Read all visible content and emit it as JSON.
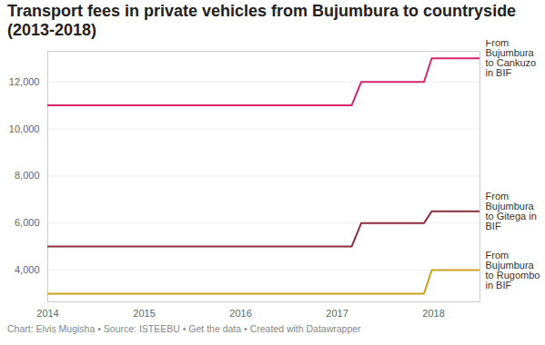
{
  "chart_data": {
    "type": "line",
    "title": "Transport fees in private vehicles from Bujumbura to countryside (2013-2018)",
    "caption": "Chart: Elvis Mugisha • Source: ISTEEBU • Get the data • Created with Datawrapper",
    "x": [
      2014,
      2017.15,
      2017.25,
      2017.9,
      2017.98,
      2018.48
    ],
    "series": [
      {
        "name": "From Bujumbura to Cankuzo in BIF",
        "color": "#d6246e",
        "values": [
          11000,
          11000,
          12000,
          12000,
          13000,
          13000
        ]
      },
      {
        "name": "From Bujumbura to Gitega in BIF",
        "color": "#8c2d3b",
        "values": [
          5000,
          5000,
          6000,
          6000,
          6500,
          6500
        ]
      },
      {
        "name": "From Bujumbura to Rugombo in BIF",
        "color": "#c9a020",
        "values": [
          3000,
          3000,
          3000,
          3000,
          4000,
          4000
        ]
      }
    ],
    "xlim": [
      2014,
      2018.48
    ],
    "xticks": [
      2014,
      2015,
      2016,
      2017,
      2018
    ],
    "ylim": [
      2650,
      13300
    ],
    "yticks": [
      {
        "value": 4000,
        "label": "4,000"
      },
      {
        "value": 6000,
        "label": "6,000"
      },
      {
        "value": 8000,
        "label": "8,000"
      },
      {
        "value": 10000,
        "label": "10,000"
      },
      {
        "value": 12000,
        "label": "12,000"
      }
    ],
    "grid": true
  }
}
